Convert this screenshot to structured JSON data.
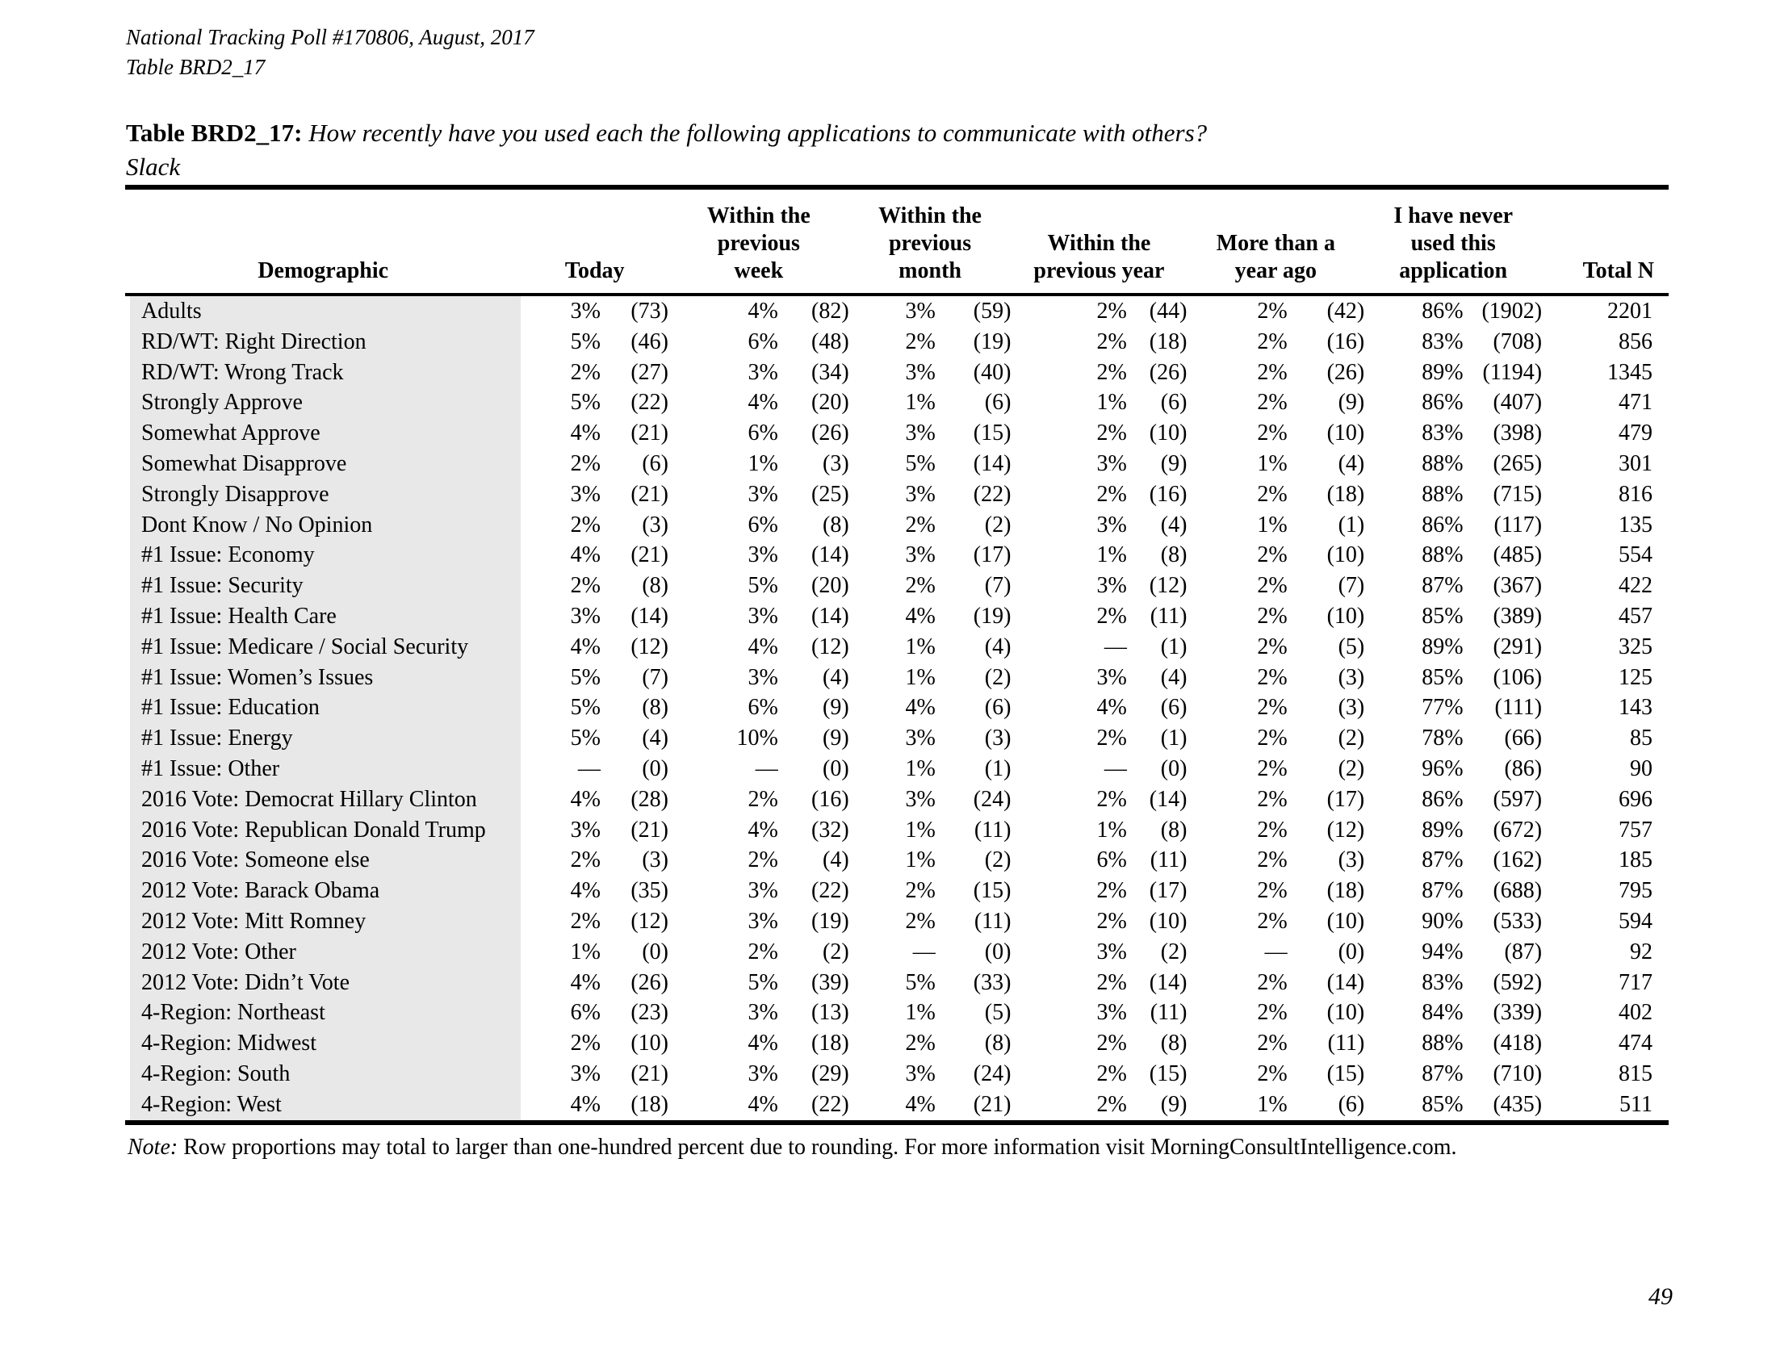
{
  "page": {
    "meta_line1": "National Tracking Poll #170806, August, 2017",
    "meta_line2": "Table BRD2_17",
    "title_label": "Table BRD2_17:",
    "title_question": "How recently have you used each the following applications to communicate with others?",
    "title_subject": "Slack",
    "note_label": "Note:",
    "note_body": "Row proportions may total to larger than one-hundred percent due to rounding. For more information visit MorningConsultIntelligence.com.",
    "page_number": "49"
  },
  "colors": {
    "row_band": "#e8e8e8",
    "rule": "#000000",
    "text": "#000000"
  },
  "table": {
    "demographic_header": "Demographic",
    "group_headers": [
      "Today",
      "Within the\nprevious\nweek",
      "Within the\nprevious\nmonth",
      "Within the\nprevious year",
      "More than a\nyear ago",
      "I have never\nused this\napplication"
    ],
    "total_header": "Total N",
    "rows": [
      {
        "label": "Adults",
        "values": [
          "3%",
          "(73)",
          "4%",
          "(82)",
          "3%",
          "(59)",
          "2%",
          "(44)",
          "2%",
          "(42)",
          "86%",
          "(1902)"
        ],
        "total": "2201"
      },
      {
        "label": "RD/WT: Right Direction",
        "values": [
          "5%",
          "(46)",
          "6%",
          "(48)",
          "2%",
          "(19)",
          "2%",
          "(18)",
          "2%",
          "(16)",
          "83%",
          "(708)"
        ],
        "total": "856"
      },
      {
        "label": "RD/WT: Wrong Track",
        "values": [
          "2%",
          "(27)",
          "3%",
          "(34)",
          "3%",
          "(40)",
          "2%",
          "(26)",
          "2%",
          "(26)",
          "89%",
          "(1194)"
        ],
        "total": "1345"
      },
      {
        "label": "Strongly Approve",
        "values": [
          "5%",
          "(22)",
          "4%",
          "(20)",
          "1%",
          "(6)",
          "1%",
          "(6)",
          "2%",
          "(9)",
          "86%",
          "(407)"
        ],
        "total": "471"
      },
      {
        "label": "Somewhat Approve",
        "values": [
          "4%",
          "(21)",
          "6%",
          "(26)",
          "3%",
          "(15)",
          "2%",
          "(10)",
          "2%",
          "(10)",
          "83%",
          "(398)"
        ],
        "total": "479"
      },
      {
        "label": "Somewhat Disapprove",
        "values": [
          "2%",
          "(6)",
          "1%",
          "(3)",
          "5%",
          "(14)",
          "3%",
          "(9)",
          "1%",
          "(4)",
          "88%",
          "(265)"
        ],
        "total": "301"
      },
      {
        "label": "Strongly Disapprove",
        "values": [
          "3%",
          "(21)",
          "3%",
          "(25)",
          "3%",
          "(22)",
          "2%",
          "(16)",
          "2%",
          "(18)",
          "88%",
          "(715)"
        ],
        "total": "816"
      },
      {
        "label": "Dont Know / No Opinion",
        "values": [
          "2%",
          "(3)",
          "6%",
          "(8)",
          "2%",
          "(2)",
          "3%",
          "(4)",
          "1%",
          "(1)",
          "86%",
          "(117)"
        ],
        "total": "135"
      },
      {
        "label": "#1 Issue: Economy",
        "values": [
          "4%",
          "(21)",
          "3%",
          "(14)",
          "3%",
          "(17)",
          "1%",
          "(8)",
          "2%",
          "(10)",
          "88%",
          "(485)"
        ],
        "total": "554"
      },
      {
        "label": "#1 Issue: Security",
        "values": [
          "2%",
          "(8)",
          "5%",
          "(20)",
          "2%",
          "(7)",
          "3%",
          "(12)",
          "2%",
          "(7)",
          "87%",
          "(367)"
        ],
        "total": "422"
      },
      {
        "label": "#1 Issue: Health Care",
        "values": [
          "3%",
          "(14)",
          "3%",
          "(14)",
          "4%",
          "(19)",
          "2%",
          "(11)",
          "2%",
          "(10)",
          "85%",
          "(389)"
        ],
        "total": "457"
      },
      {
        "label": "#1 Issue: Medicare / Social Security",
        "values": [
          "4%",
          "(12)",
          "4%",
          "(12)",
          "1%",
          "(4)",
          "—",
          "(1)",
          "2%",
          "(5)",
          "89%",
          "(291)"
        ],
        "total": "325"
      },
      {
        "label": "#1 Issue: Women’s Issues",
        "values": [
          "5%",
          "(7)",
          "3%",
          "(4)",
          "1%",
          "(2)",
          "3%",
          "(4)",
          "2%",
          "(3)",
          "85%",
          "(106)"
        ],
        "total": "125"
      },
      {
        "label": "#1 Issue: Education",
        "values": [
          "5%",
          "(8)",
          "6%",
          "(9)",
          "4%",
          "(6)",
          "4%",
          "(6)",
          "2%",
          "(3)",
          "77%",
          "(111)"
        ],
        "total": "143"
      },
      {
        "label": "#1 Issue: Energy",
        "values": [
          "5%",
          "(4)",
          "10%",
          "(9)",
          "3%",
          "(3)",
          "2%",
          "(1)",
          "2%",
          "(2)",
          "78%",
          "(66)"
        ],
        "total": "85"
      },
      {
        "label": "#1 Issue: Other",
        "values": [
          "—",
          "(0)",
          "—",
          "(0)",
          "1%",
          "(1)",
          "—",
          "(0)",
          "2%",
          "(2)",
          "96%",
          "(86)"
        ],
        "total": "90"
      },
      {
        "label": "2016 Vote: Democrat Hillary Clinton",
        "values": [
          "4%",
          "(28)",
          "2%",
          "(16)",
          "3%",
          "(24)",
          "2%",
          "(14)",
          "2%",
          "(17)",
          "86%",
          "(597)"
        ],
        "total": "696"
      },
      {
        "label": "2016 Vote: Republican Donald Trump",
        "values": [
          "3%",
          "(21)",
          "4%",
          "(32)",
          "1%",
          "(11)",
          "1%",
          "(8)",
          "2%",
          "(12)",
          "89%",
          "(672)"
        ],
        "total": "757"
      },
      {
        "label": "2016 Vote: Someone else",
        "values": [
          "2%",
          "(3)",
          "2%",
          "(4)",
          "1%",
          "(2)",
          "6%",
          "(11)",
          "2%",
          "(3)",
          "87%",
          "(162)"
        ],
        "total": "185"
      },
      {
        "label": "2012 Vote: Barack Obama",
        "values": [
          "4%",
          "(35)",
          "3%",
          "(22)",
          "2%",
          "(15)",
          "2%",
          "(17)",
          "2%",
          "(18)",
          "87%",
          "(688)"
        ],
        "total": "795"
      },
      {
        "label": "2012 Vote: Mitt Romney",
        "values": [
          "2%",
          "(12)",
          "3%",
          "(19)",
          "2%",
          "(11)",
          "2%",
          "(10)",
          "2%",
          "(10)",
          "90%",
          "(533)"
        ],
        "total": "594"
      },
      {
        "label": "2012 Vote: Other",
        "values": [
          "1%",
          "(0)",
          "2%",
          "(2)",
          "—",
          "(0)",
          "3%",
          "(2)",
          "—",
          "(0)",
          "94%",
          "(87)"
        ],
        "total": "92"
      },
      {
        "label": "2012 Vote: Didn’t Vote",
        "values": [
          "4%",
          "(26)",
          "5%",
          "(39)",
          "5%",
          "(33)",
          "2%",
          "(14)",
          "2%",
          "(14)",
          "83%",
          "(592)"
        ],
        "total": "717"
      },
      {
        "label": "4-Region: Northeast",
        "values": [
          "6%",
          "(23)",
          "3%",
          "(13)",
          "1%",
          "(5)",
          "3%",
          "(11)",
          "2%",
          "(10)",
          "84%",
          "(339)"
        ],
        "total": "402"
      },
      {
        "label": "4-Region: Midwest",
        "values": [
          "2%",
          "(10)",
          "4%",
          "(18)",
          "2%",
          "(8)",
          "2%",
          "(8)",
          "2%",
          "(11)",
          "88%",
          "(418)"
        ],
        "total": "474"
      },
      {
        "label": "4-Region: South",
        "values": [
          "3%",
          "(21)",
          "3%",
          "(29)",
          "3%",
          "(24)",
          "2%",
          "(15)",
          "2%",
          "(15)",
          "87%",
          "(710)"
        ],
        "total": "815"
      },
      {
        "label": "4-Region: West",
        "values": [
          "4%",
          "(18)",
          "4%",
          "(22)",
          "4%",
          "(21)",
          "2%",
          "(9)",
          "1%",
          "(6)",
          "85%",
          "(435)"
        ],
        "total": "511"
      }
    ]
  }
}
